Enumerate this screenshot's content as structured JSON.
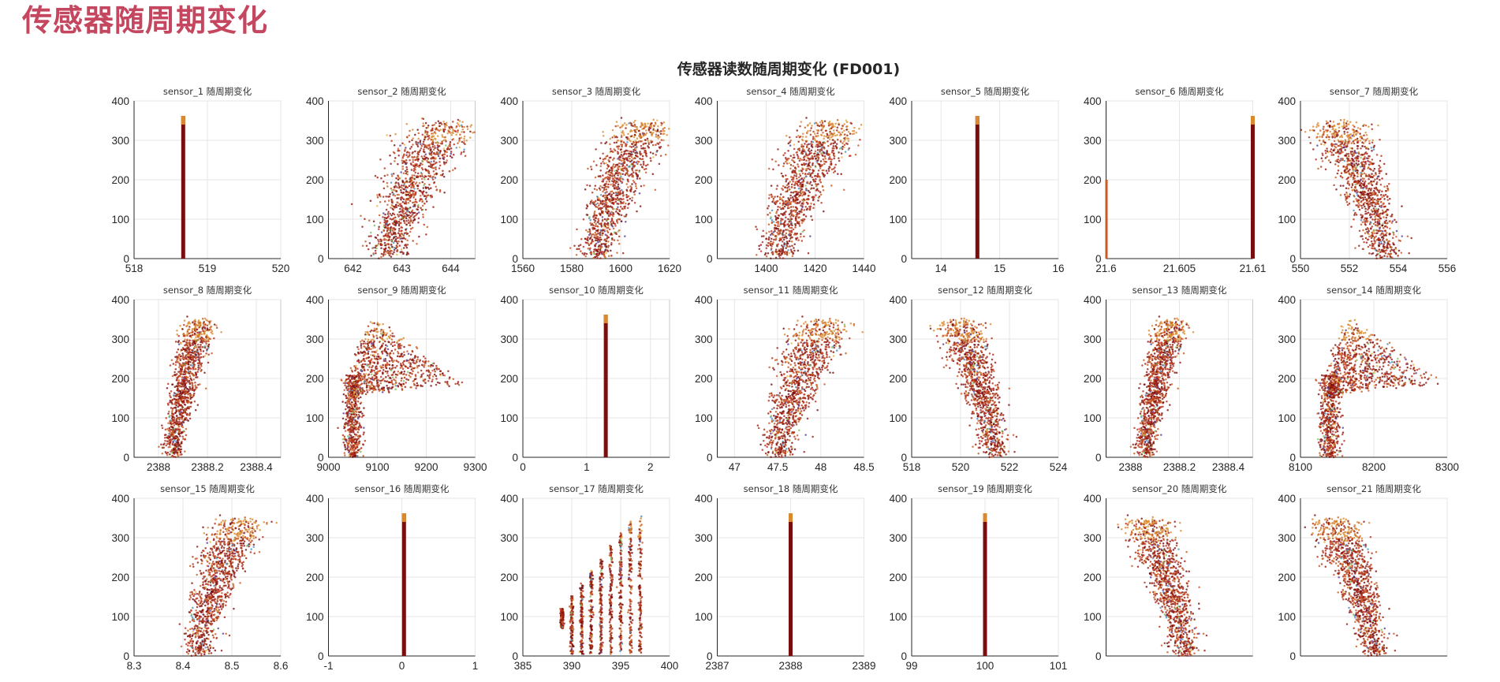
{
  "page": {
    "title": "传感器随周期变化"
  },
  "colors": {
    "title": "#c4465f",
    "points": [
      "#7a0e0e",
      "#9b1c10",
      "#b8321a",
      "#c85a20",
      "#d98a2f",
      "#e8b546",
      "#7fbf5e",
      "#4d8fc1",
      "#5a3d9a"
    ]
  },
  "chart_data": {
    "type": "scatter",
    "title": "传感器读数随周期变化 (FD001)",
    "grid": true,
    "panels": [
      {
        "title": "sensor_1 随周期变化",
        "shape": "line",
        "center": 518.67,
        "xlim": [
          518,
          520
        ],
        "xticks": [
          518,
          519,
          520
        ],
        "xtick_labels": [
          "518",
          "519",
          "520"
        ],
        "ylim": [
          0,
          400
        ],
        "yticks": [
          0,
          100,
          200,
          300,
          400
        ]
      },
      {
        "title": "sensor_2 随周期变化",
        "shape": "up",
        "center": 642.7,
        "spread": 0.55,
        "xlim": [
          641.5,
          644.5
        ],
        "xticks": [
          642,
          643,
          644
        ],
        "xtick_labels": [
          "642",
          "643",
          "644"
        ],
        "ylim": [
          0,
          400
        ],
        "yticks": [
          0,
          100,
          200,
          300,
          400
        ]
      },
      {
        "title": "sensor_3 随周期变化",
        "shape": "up",
        "center": 1590,
        "spread": 9,
        "xlim": [
          1560,
          1620
        ],
        "xticks": [
          1560,
          1580,
          1600,
          1620
        ],
        "xtick_labels": [
          "1560",
          "1580",
          "1600",
          "1620"
        ],
        "ylim": [
          0,
          400
        ],
        "yticks": [
          0,
          100,
          200,
          300,
          400
        ]
      },
      {
        "title": "sensor_4 随周期变化",
        "shape": "up",
        "center": 1405,
        "spread": 10,
        "xlim": [
          1380,
          1440
        ],
        "xticks": [
          1400,
          1420,
          1440
        ],
        "xtick_labels": [
          "1400",
          "1420",
          "1440"
        ],
        "ylim": [
          0,
          400
        ],
        "yticks": [
          0,
          100,
          200,
          300,
          400
        ]
      },
      {
        "title": "sensor_5 随周期变化",
        "shape": "line",
        "center": 14.62,
        "xlim": [
          13.5,
          16
        ],
        "xticks": [
          14,
          15,
          16
        ],
        "xtick_labels": [
          "14",
          "15",
          "16"
        ],
        "ylim": [
          0,
          400
        ],
        "yticks": [
          0,
          100,
          200,
          300,
          400
        ]
      },
      {
        "title": "sensor_6 随周期变化",
        "shape": "twoline",
        "center": 21.61,
        "center2": 21.6,
        "xlim": [
          21.6,
          21.61
        ],
        "xticks": [
          21.6,
          21.605,
          21.61
        ],
        "xtick_labels": [
          "21.6",
          "21.605",
          "21.61"
        ],
        "ylim": [
          0,
          400
        ],
        "yticks": [
          0,
          100,
          200,
          300,
          400
        ]
      },
      {
        "title": "sensor_7 随周期变化",
        "shape": "down",
        "center": 553.4,
        "spread": 0.9,
        "xlim": [
          550,
          556
        ],
        "xticks": [
          550,
          552,
          554,
          556
        ],
        "xtick_labels": [
          "550",
          "552",
          "554",
          "556"
        ],
        "ylim": [
          0,
          400
        ],
        "yticks": [
          0,
          100,
          200,
          300,
          400
        ]
      },
      {
        "title": "sensor_8 随周期变化",
        "shape": "up",
        "center": 2388.06,
        "spread": 0.05,
        "xlim": [
          2387.9,
          2388.5
        ],
        "xticks": [
          2388,
          2388.2,
          2388.4
        ],
        "xtick_labels": [
          "2388",
          "2388.2",
          "2388.4"
        ],
        "ylim": [
          0,
          400
        ],
        "yticks": [
          0,
          100,
          200,
          300,
          400
        ]
      },
      {
        "title": "sensor_9 随周期变化",
        "shape": "fan",
        "center": 9050,
        "spread": 10,
        "xlim": [
          9000,
          9300
        ],
        "xticks": [
          9000,
          9100,
          9200,
          9300
        ],
        "xtick_labels": [
          "9000",
          "9100",
          "9200",
          "9300"
        ],
        "ylim": [
          0,
          400
        ],
        "yticks": [
          0,
          100,
          200,
          300,
          400
        ]
      },
      {
        "title": "sensor_10 随周期变化",
        "shape": "line",
        "center": 1.3,
        "xlim": [
          0,
          2.3
        ],
        "xticks": [
          0,
          1,
          2
        ],
        "xtick_labels": [
          "0",
          "1",
          "2"
        ],
        "ylim": [
          0,
          400
        ],
        "yticks": [
          0,
          100,
          200,
          300,
          400
        ]
      },
      {
        "title": "sensor_11 随周期变化",
        "shape": "up",
        "center": 47.5,
        "spread": 0.25,
        "xlim": [
          46.8,
          48.5
        ],
        "xticks": [
          47,
          47.5,
          48,
          48.5
        ],
        "xtick_labels": [
          "47",
          "47.5",
          "48",
          "48.5"
        ],
        "ylim": [
          0,
          400
        ],
        "yticks": [
          0,
          100,
          200,
          300,
          400
        ]
      },
      {
        "title": "sensor_12 随周期变化",
        "shape": "down",
        "center": 521.4,
        "spread": 0.7,
        "xlim": [
          518,
          524
        ],
        "xticks": [
          518,
          520,
          522,
          524
        ],
        "xtick_labels": [
          "518",
          "520",
          "522",
          "524"
        ],
        "ylim": [
          0,
          400
        ],
        "yticks": [
          0,
          100,
          200,
          300,
          400
        ]
      },
      {
        "title": "sensor_13 随周期变化",
        "shape": "up",
        "center": 2388.06,
        "spread": 0.05,
        "xlim": [
          2387.9,
          2388.5
        ],
        "xticks": [
          2388,
          2388.2,
          2388.4
        ],
        "xtick_labels": [
          "2388",
          "2388.2",
          "2388.4"
        ],
        "ylim": [
          0,
          400
        ],
        "yticks": [
          0,
          100,
          200,
          300,
          400
        ]
      },
      {
        "title": "sensor_14 随周期变化",
        "shape": "fan",
        "center": 8140,
        "spread": 8,
        "xlim": [
          8100,
          8300
        ],
        "xticks": [
          8100,
          8200,
          8300
        ],
        "xtick_labels": [
          "8100",
          "8200",
          "8300"
        ],
        "ylim": [
          0,
          400
        ],
        "yticks": [
          0,
          100,
          200,
          300,
          400
        ]
      },
      {
        "title": "sensor_15 随周期变化",
        "shape": "up",
        "center": 8.43,
        "spread": 0.04,
        "xlim": [
          8.3,
          8.6
        ],
        "xticks": [
          8.3,
          8.4,
          8.5,
          8.6
        ],
        "xtick_labels": [
          "8.3",
          "8.4",
          "8.5",
          "8.6"
        ],
        "ylim": [
          0,
          400
        ],
        "yticks": [
          0,
          100,
          200,
          300,
          400
        ]
      },
      {
        "title": "sensor_16 随周期变化",
        "shape": "line",
        "center": 0.03,
        "xlim": [
          -1,
          1
        ],
        "xticks": [
          -1,
          0,
          1
        ],
        "xtick_labels": [
          "-1",
          "0",
          "1"
        ],
        "ylim": [
          0,
          400
        ],
        "yticks": [
          0,
          100,
          200,
          300,
          400
        ]
      },
      {
        "title": "sensor_17 随周期变化",
        "shape": "columns",
        "columns": [
          389,
          390,
          391,
          392,
          393,
          394,
          395,
          396,
          397
        ],
        "xlim": [
          385,
          400
        ],
        "xticks": [
          385,
          390,
          395,
          400
        ],
        "xtick_labels": [
          "385",
          "390",
          "395",
          "400"
        ],
        "ylim": [
          0,
          400
        ],
        "yticks": [
          0,
          100,
          200,
          300,
          400
        ]
      },
      {
        "title": "sensor_18 随周期变化",
        "shape": "line",
        "center": 2388,
        "xlim": [
          2387,
          2389
        ],
        "xticks": [
          2387,
          2388,
          2389
        ],
        "xtick_labels": [
          "2387",
          "2388",
          "2389"
        ],
        "ylim": [
          0,
          400
        ],
        "yticks": [
          0,
          100,
          200,
          300,
          400
        ]
      },
      {
        "title": "sensor_19 随周期变化",
        "shape": "line",
        "center": 100,
        "xlim": [
          99,
          101
        ],
        "xticks": [
          99,
          100,
          101
        ],
        "xtick_labels": [
          "99",
          "100",
          "101"
        ],
        "ylim": [
          0,
          400
        ],
        "yticks": [
          0,
          100,
          200,
          300,
          400
        ]
      },
      {
        "title": "sensor_20 随周期变化",
        "shape": "down",
        "center": 38.8,
        "spread": 0.18,
        "xlim": [
          38,
          39.5
        ],
        "xticks": [
          38,
          39.5
        ],
        "xtick_labels": [
          "",
          ""
        ],
        "ylim": [
          0,
          400
        ],
        "yticks": [
          0,
          100,
          200,
          300,
          400
        ]
      },
      {
        "title": "sensor_21 随周期变化",
        "shape": "down",
        "center": 23.3,
        "spread": 0.1,
        "xlim": [
          22.9,
          23.7
        ],
        "xticks": [
          22.9,
          23.7
        ],
        "xtick_labels": [
          "",
          ""
        ],
        "ylim": [
          0,
          400
        ],
        "yticks": [
          0,
          100,
          200,
          300,
          400
        ]
      }
    ]
  }
}
